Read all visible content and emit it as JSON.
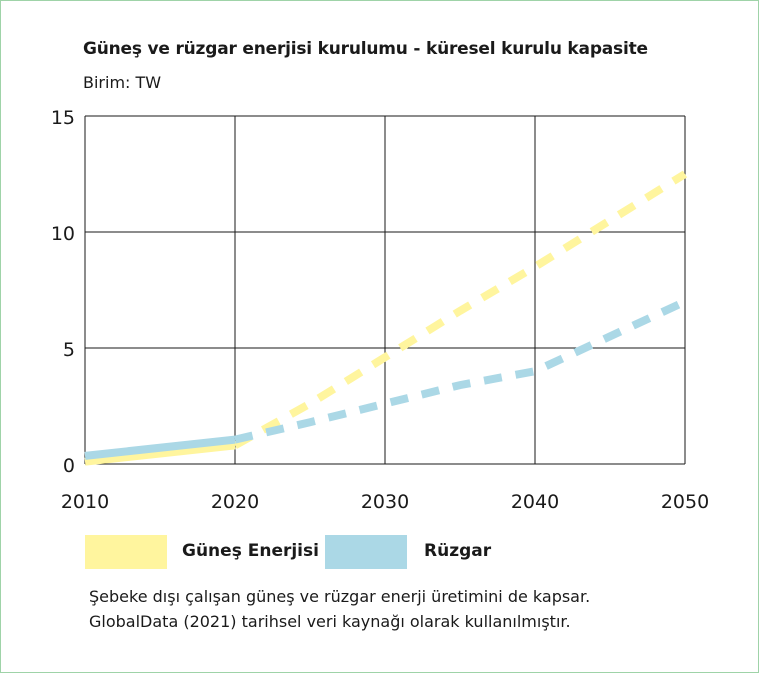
{
  "chart_data": {
    "type": "line",
    "title": "Güneş ve rüzgar enerjisi kurulumu - küresel kurulu kapasite",
    "subtitle": "Birim: TW",
    "xlabel": "",
    "ylabel": "",
    "x_ticks": [
      "2010",
      "2020",
      "2030",
      "2040",
      "2050"
    ],
    "y_ticks": [
      "0",
      "5",
      "10",
      "15"
    ],
    "xlim": [
      2010,
      2050
    ],
    "ylim": [
      0,
      15
    ],
    "grid": true,
    "legend_position": "bottom",
    "series": [
      {
        "name": "Güneş Enerjisi",
        "color": "#fff59e",
        "historical": {
          "x": [
            2010,
            2020
          ],
          "y": [
            0.1,
            0.8
          ]
        },
        "projection": {
          "x": [
            2020,
            2025,
            2030,
            2035,
            2040,
            2045,
            2050
          ],
          "y": [
            0.8,
            2.6,
            4.6,
            6.6,
            8.5,
            10.5,
            12.5
          ]
        }
      },
      {
        "name": "Rüzgar",
        "color": "#abd8e6",
        "historical": {
          "x": [
            2010,
            2020
          ],
          "y": [
            0.35,
            1.05
          ]
        },
        "projection": {
          "x": [
            2020,
            2025,
            2030,
            2035,
            2040,
            2045,
            2050
          ],
          "y": [
            1.05,
            1.8,
            2.6,
            3.4,
            4.0,
            5.5,
            7.0
          ]
        }
      }
    ],
    "notes": [
      "Şebeke dışı çalışan güneş ve rüzgar enerji üretimini de kapsar.",
      "GlobalData (2021) tarihsel veri kaynağı olarak kullanılmıştır."
    ]
  }
}
